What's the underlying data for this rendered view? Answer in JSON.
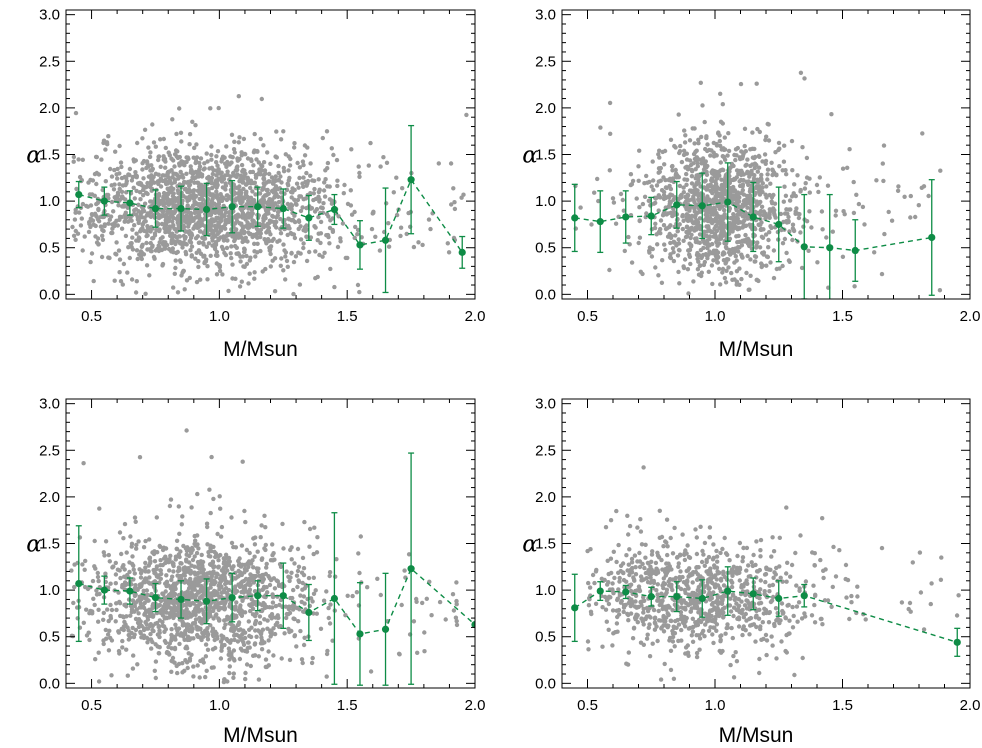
{
  "colors": {
    "scatter": "#9a9a9a",
    "binned": "#0e8c46",
    "axis": "#000000"
  },
  "chart_data": [
    {
      "type": "scatter",
      "xlabel": "M/Msun",
      "ylabel": "α",
      "xlim": [
        0.4,
        2.0
      ],
      "ylim": [
        -0.05,
        3.05
      ],
      "xticks": [
        "0.5",
        "1.0",
        "1.5",
        "2.0"
      ],
      "yticks": [
        "0.0",
        "0.5",
        "1.0",
        "1.5",
        "2.0",
        "2.5",
        "3.0"
      ],
      "scatter": {
        "count": 1900,
        "x_center": 0.95,
        "x_spread": 0.24,
        "x_min": 0.42,
        "x_max": 1.97,
        "y_center": 0.92,
        "y_spread": 0.32
      },
      "binned": {
        "x": [
          0.45,
          0.55,
          0.65,
          0.75,
          0.85,
          0.95,
          1.05,
          1.15,
          1.25,
          1.35,
          1.45,
          1.55,
          1.65,
          1.75,
          1.95
        ],
        "y": [
          1.07,
          1.0,
          0.98,
          0.92,
          0.92,
          0.91,
          0.94,
          0.94,
          0.92,
          0.82,
          0.91,
          0.53,
          0.58,
          1.23,
          0.45
        ],
        "yerr": [
          0.14,
          0.15,
          0.13,
          0.2,
          0.24,
          0.28,
          0.28,
          0.21,
          0.21,
          0.24,
          0.16,
          0.26,
          0.56,
          0.58,
          0.17
        ]
      }
    },
    {
      "type": "scatter",
      "xlabel": "M/Msun",
      "ylabel": "α",
      "xlim": [
        0.4,
        2.0
      ],
      "ylim": [
        -0.05,
        3.05
      ],
      "xticks": [
        "0.5",
        "1.0",
        "1.5",
        "2.0"
      ],
      "yticks": [
        "0.0",
        "0.5",
        "1.0",
        "1.5",
        "2.0",
        "2.5",
        "3.0"
      ],
      "scatter": {
        "count": 1300,
        "x_center": 1.02,
        "x_spread": 0.14,
        "x_min": 0.42,
        "x_max": 1.9,
        "y_center": 0.92,
        "y_spread": 0.35
      },
      "binned": {
        "x": [
          0.45,
          0.55,
          0.65,
          0.75,
          0.85,
          0.95,
          1.05,
          1.15,
          1.25,
          1.35,
          1.45,
          1.55,
          1.85
        ],
        "y": [
          0.82,
          0.78,
          0.83,
          0.84,
          0.96,
          0.95,
          0.99,
          0.83,
          0.75,
          0.51,
          0.5,
          0.47,
          0.61
        ],
        "yerr": [
          0.36,
          0.33,
          0.28,
          0.2,
          0.25,
          0.35,
          0.42,
          0.37,
          0.4,
          0.56,
          0.57,
          0.33,
          0.62
        ]
      }
    },
    {
      "type": "scatter",
      "xlabel": "M/Msun",
      "ylabel": "α",
      "xlim": [
        0.4,
        2.0
      ],
      "ylim": [
        -0.05,
        3.05
      ],
      "xticks": [
        "0.5",
        "1.0",
        "1.5",
        "2.0"
      ],
      "yticks": [
        "0.0",
        "0.5",
        "1.0",
        "1.5",
        "2.0",
        "2.5",
        "3.0"
      ],
      "scatter": {
        "count": 1600,
        "x_center": 0.92,
        "x_spread": 0.22,
        "x_min": 0.42,
        "x_max": 1.95,
        "y_center": 0.9,
        "y_spread": 0.33
      },
      "binned": {
        "x": [
          0.45,
          0.55,
          0.65,
          0.75,
          0.85,
          0.95,
          1.05,
          1.15,
          1.25,
          1.35,
          1.45,
          1.55,
          1.65,
          1.75,
          2.0
        ],
        "y": [
          1.07,
          1.0,
          0.99,
          0.92,
          0.9,
          0.88,
          0.92,
          0.94,
          0.94,
          0.76,
          0.91,
          0.53,
          0.58,
          1.23,
          0.63
        ],
        "yerr": [
          0.62,
          0.15,
          0.14,
          0.15,
          0.2,
          0.24,
          0.26,
          0.16,
          0.35,
          0.3,
          0.92,
          0.55,
          0.6,
          1.24,
          0.0
        ]
      }
    },
    {
      "type": "scatter",
      "xlabel": "M/Msun",
      "ylabel": "α",
      "xlim": [
        0.4,
        2.0
      ],
      "ylim": [
        -0.05,
        3.05
      ],
      "xticks": [
        "0.5",
        "1.0",
        "1.5",
        "2.0"
      ],
      "yticks": [
        "0.0",
        "0.5",
        "1.0",
        "1.5",
        "2.0",
        "2.5",
        "3.0"
      ],
      "scatter": {
        "count": 1000,
        "x_center": 0.92,
        "x_spread": 0.22,
        "x_min": 0.5,
        "x_max": 1.97,
        "y_center": 0.93,
        "y_spread": 0.28
      },
      "binned": {
        "x": [
          0.45,
          0.55,
          0.65,
          0.75,
          0.85,
          0.95,
          1.05,
          1.15,
          1.25,
          1.35,
          1.95
        ],
        "y": [
          0.81,
          0.99,
          0.98,
          0.93,
          0.93,
          0.91,
          0.99,
          0.96,
          0.91,
          0.94,
          0.44
        ],
        "yerr": [
          0.36,
          0.1,
          0.07,
          0.1,
          0.16,
          0.2,
          0.26,
          0.17,
          0.19,
          0.12,
          0.15
        ]
      }
    }
  ]
}
